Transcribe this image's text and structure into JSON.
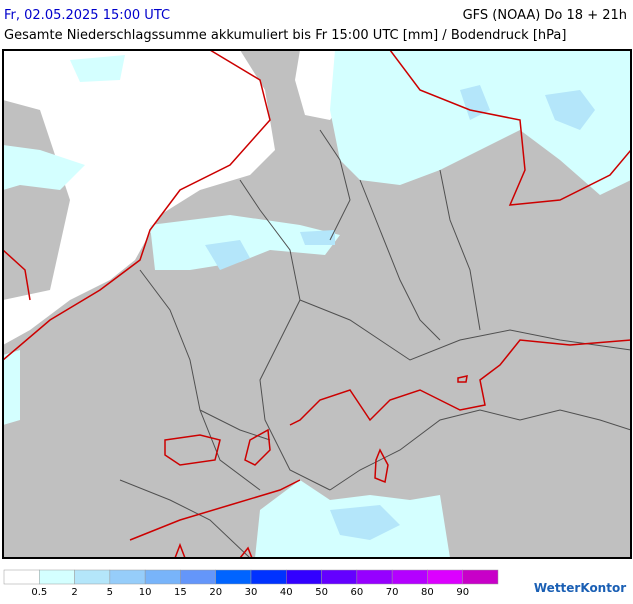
{
  "header": {
    "datetime": "Fr, 02.05.2025 15:00 UTC",
    "model": "GFS (NOAA) Do 18 + 21h",
    "subtitle": "Gesamte Niederschlagssumme akkumuliert bis Fr 15:00 UTC [mm] / Bodendruck [hPa]"
  },
  "legend": {
    "colors": [
      "#ffffff",
      "#d4ffff",
      "#b4e6fa",
      "#96cdfa",
      "#78b4fa",
      "#6496fa",
      "#0064ff",
      "#0032ff",
      "#3200ff",
      "#6400ff",
      "#9600ff",
      "#b400ff",
      "#dc00ff",
      "#c800c8"
    ],
    "labels": [
      "0.5",
      "2",
      "5",
      "10",
      "15",
      "20",
      "30",
      "40",
      "50",
      "60",
      "70",
      "80",
      "90"
    ]
  },
  "brand": "WetterKontor"
}
